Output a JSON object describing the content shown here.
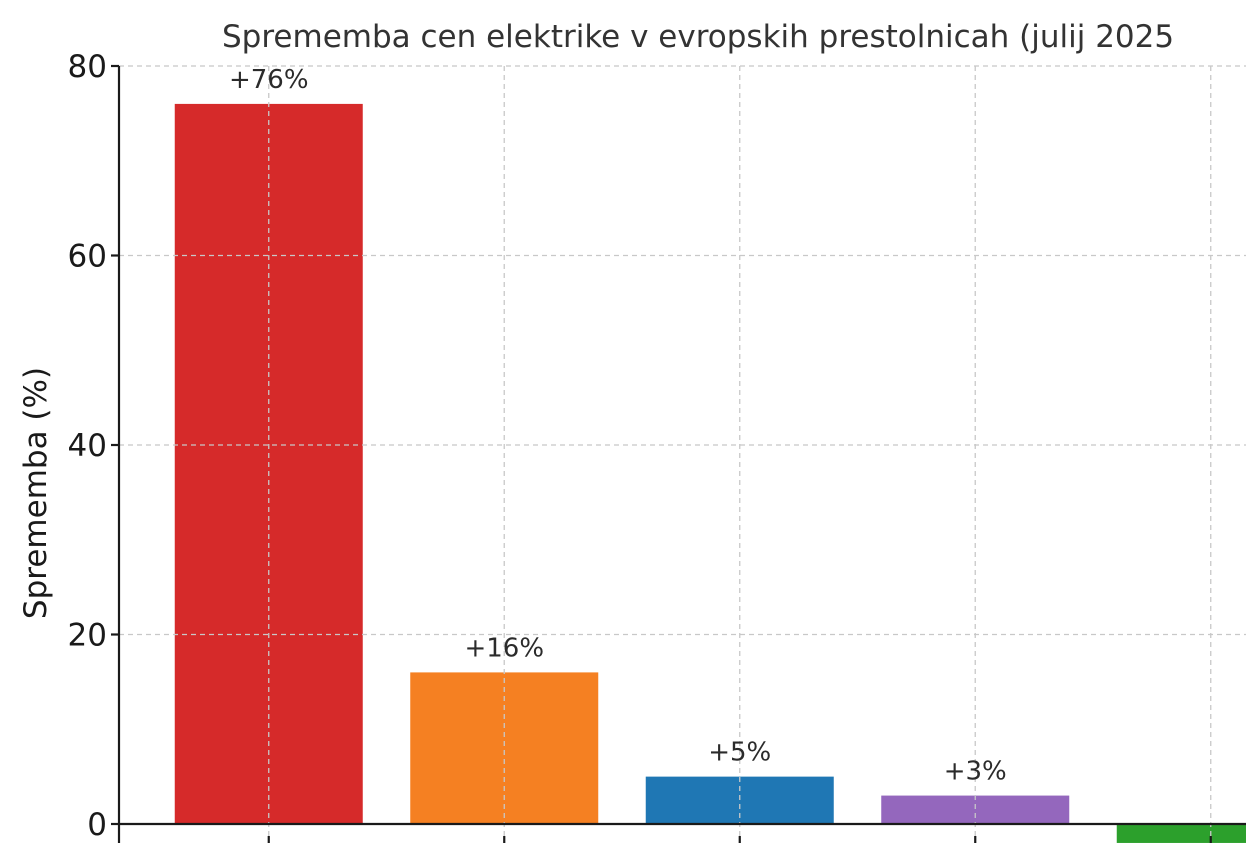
{
  "chart_data": {
    "type": "bar",
    "title": "Sprememba cen elektrike v evropskih prestolnicah (julij 2025",
    "xlabel": "",
    "ylabel": "Sprememba (%)",
    "categories": [
      "",
      "",
      "",
      "",
      ""
    ],
    "values": [
      76,
      16,
      5,
      3,
      -2
    ],
    "value_labels": [
      "+76%",
      "+16%",
      "+5%",
      "+3%",
      ""
    ],
    "colors": [
      "#d62a2a",
      "#f58022",
      "#1f77b4",
      "#9467bd",
      "#2ca02c"
    ],
    "ylim": [
      -2,
      80
    ],
    "yticks": [
      0,
      20,
      40,
      60,
      80
    ],
    "grid": true,
    "legend": "none"
  }
}
